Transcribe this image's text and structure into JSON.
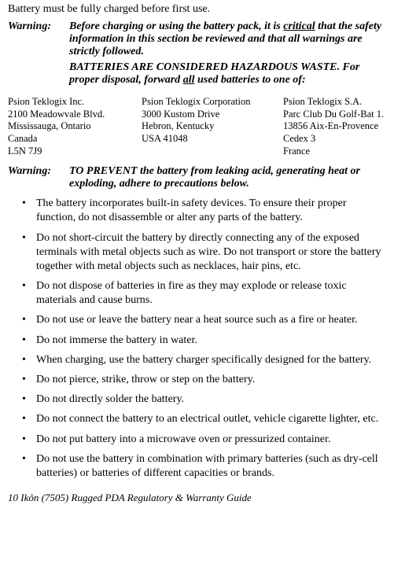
{
  "intro": "Battery must be fully charged before first use.",
  "warning1": {
    "label": "Warning:",
    "p1_pre": "Before charging or using the battery pack, it is ",
    "p1_underlined": "critical",
    "p1_post": " that the safety information in this section be reviewed and that all warnings are strictly followed.",
    "p2": "BATTERIES ARE CONSIDERED HAZARDOUS WASTE. For proper disposal, forward ",
    "p2_underlined": "all",
    "p2_post": " used batteries to one of:"
  },
  "addresses": {
    "col1": {
      "l1": "Psion Teklogix Inc.",
      "l2": "2100 Meadowvale Blvd.",
      "l3": "Mississauga, Ontario",
      "l4": "Canada",
      "l5": "L5N 7J9"
    },
    "col2": {
      "l1": "Psion Teklogix Corporation",
      "l2": "3000 Kustom Drive",
      "l3": "Hebron, Kentucky",
      "l4": "USA 41048"
    },
    "col3": {
      "l1": "Psion Teklogix S.A.",
      "l2": "Parc Club Du Golf-Bat 1.",
      "l3": "13856 Aix-En-Provence",
      "l4": "Cedex 3",
      "l5": "France"
    }
  },
  "warning2": {
    "label": "Warning:",
    "body": "TO PREVENT the battery from leaking acid, generating heat or exploding, adhere to precautions below."
  },
  "precautions": {
    "i0": "The battery incorporates built-in safety devices. To ensure their proper function, do not disassemble or alter any parts of the battery.",
    "i1": "Do not short-circuit the battery by directly connecting any of the exposed terminals with metal objects such as wire. Do not transport or store the battery together with metal objects such as necklaces, hair pins, etc.",
    "i2": "Do not dispose of batteries in fire as they may explode or release toxic materials and cause burns.",
    "i3": "Do not use or leave the battery near a heat source such as a fire or heater.",
    "i4": "Do not immerse the battery in water.",
    "i5": "When charging, use the battery charger specifically designed for the battery.",
    "i6": "Do not pierce, strike, throw or step on the battery.",
    "i7": "Do not directly solder the battery.",
    "i8": "Do not connect the battery to an electrical outlet, vehicle cigarette lighter, etc.",
    "i9": "Do not put battery into a microwave oven or pressurized container.",
    "i10": "Do not use the battery in combination with primary batteries (such as dry-cell batteries) or batteries of different capacities or brands."
  },
  "footer": "10     Ikôn (7505) Rugged PDA Regulatory & Warranty Guide"
}
